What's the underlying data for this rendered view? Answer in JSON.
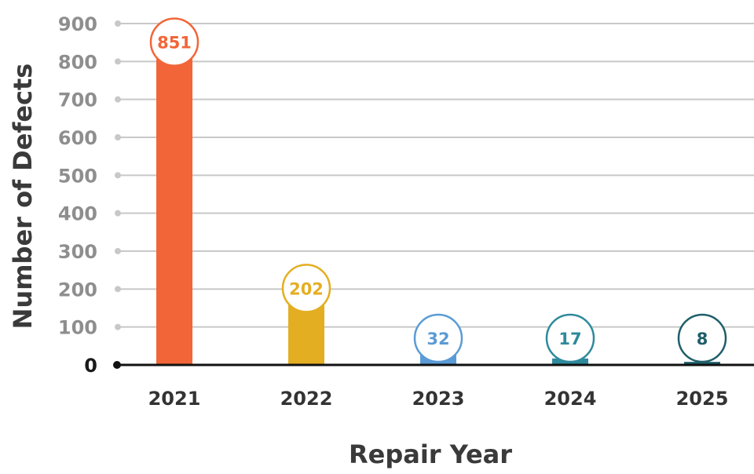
{
  "chart_data": {
    "type": "bar",
    "title": "",
    "xlabel": "Repair Year",
    "ylabel": "Number of Defects",
    "categories": [
      "2021",
      "2022",
      "2023",
      "2024",
      "2025"
    ],
    "values": [
      851,
      202,
      32,
      17,
      8
    ],
    "data_labels": [
      "851",
      "202",
      "32",
      "17",
      "8"
    ],
    "colors": [
      "#f26538",
      "#e4ae22",
      "#5b9bd5",
      "#2e8a9c",
      "#1e5f6a"
    ],
    "ylim": [
      0,
      900
    ],
    "yticks": [
      "0",
      "100",
      "200",
      "300",
      "400",
      "500",
      "600",
      "700",
      "800",
      "900"
    ],
    "grid": true,
    "legend": "none",
    "colors_meta": {
      "gridline": "#c8c8c8",
      "axis": "#111111",
      "tick_label": "#8e8e8e"
    }
  }
}
